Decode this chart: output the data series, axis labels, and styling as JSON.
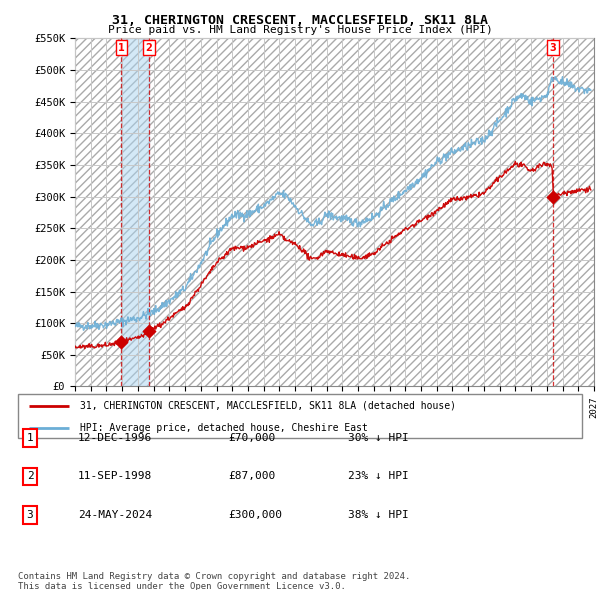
{
  "title_line1": "31, CHERINGTON CRESCENT, MACCLESFIELD, SK11 8LA",
  "title_line2": "Price paid vs. HM Land Registry's House Price Index (HPI)",
  "ylabel_ticks": [
    "£0",
    "£50K",
    "£100K",
    "£150K",
    "£200K",
    "£250K",
    "£300K",
    "£350K",
    "£400K",
    "£450K",
    "£500K",
    "£550K"
  ],
  "ytick_values": [
    0,
    50000,
    100000,
    150000,
    200000,
    250000,
    300000,
    350000,
    400000,
    450000,
    500000,
    550000
  ],
  "xmin": 1994,
  "xmax": 2027,
  "ymin": 0,
  "ymax": 550000,
  "hpi_color": "#6baed6",
  "price_color": "#cc0000",
  "background_color": "#ffffff",
  "hatch_color": "#cccccc",
  "grid_color": "#c8c8c8",
  "legend_label_red": "31, CHERINGTON CRESCENT, MACCLESFIELD, SK11 8LA (detached house)",
  "legend_label_blue": "HPI: Average price, detached house, Cheshire East",
  "transactions": [
    {
      "label": "1",
      "date": "12-DEC-1996",
      "price": 70000,
      "year": 1996.95,
      "pct": "30%",
      "dir": "↓"
    },
    {
      "label": "2",
      "date": "11-SEP-1998",
      "price": 87000,
      "year": 1998.7,
      "pct": "23%",
      "dir": "↓"
    },
    {
      "label": "3",
      "date": "24-MAY-2024",
      "price": 300000,
      "year": 2024.4,
      "pct": "38%",
      "dir": "↓"
    }
  ],
  "footer_line1": "Contains HM Land Registry data © Crown copyright and database right 2024.",
  "footer_line2": "This data is licensed under the Open Government Licence v3.0."
}
